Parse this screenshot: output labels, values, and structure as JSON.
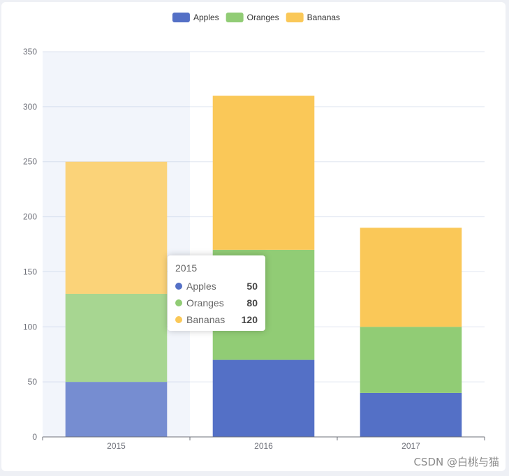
{
  "chart_data": {
    "type": "bar",
    "stacked": true,
    "categories": [
      "2015",
      "2016",
      "2017"
    ],
    "series": [
      {
        "name": "Apples",
        "color": "#5470c6",
        "values": [
          50,
          70,
          40
        ]
      },
      {
        "name": "Oranges",
        "color": "#91cc75",
        "values": [
          80,
          100,
          60
        ]
      },
      {
        "name": "Bananas",
        "color": "#fac858",
        "values": [
          120,
          140,
          90
        ]
      }
    ],
    "ylim": [
      0,
      350
    ],
    "yticks": [
      0,
      50,
      100,
      150,
      200,
      250,
      300,
      350
    ],
    "legend_position": "top-center",
    "grid": true,
    "highlighted_category_index": 0
  },
  "tooltip": {
    "title": "2015",
    "rows": [
      {
        "name": "Apples",
        "value": "50",
        "color": "#5470c6"
      },
      {
        "name": "Oranges",
        "value": "80",
        "color": "#91cc75"
      },
      {
        "name": "Bananas",
        "value": "120",
        "color": "#fac858"
      }
    ]
  },
  "watermark": "CSDN @白桃与猫"
}
